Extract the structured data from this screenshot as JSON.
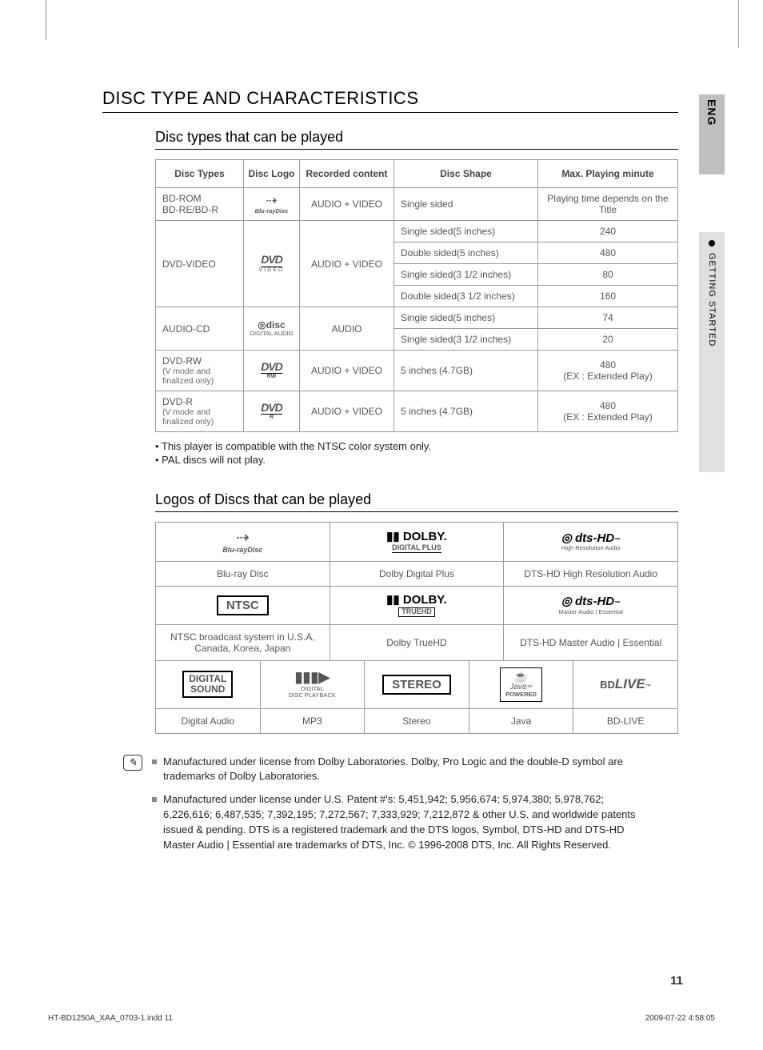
{
  "sideLang": "ENG",
  "sideTab": "GETTING STARTED",
  "sectionTitle": "DISC TYPE AND CHARACTERISTICS",
  "subtitle1": "Disc types that can be played",
  "discTable": {
    "headers": [
      "Disc Types",
      "Disc Logo",
      "Recorded content",
      "Disc Shape",
      "Max. Playing minute"
    ],
    "logos": {
      "bluray": "Blu-ray Disc",
      "dvdvideo": "DVD VIDEO",
      "cd": "COMPACT DISC DIGITAL AUDIO",
      "dvdrw": "DVD RW",
      "dvdr": "DVD R"
    },
    "rows": [
      {
        "type": "BD-ROM\nBD-RE/BD-R",
        "logo": "bluray",
        "content": "AUDIO + VIDEO",
        "shapes": [
          "Single sided"
        ],
        "minutes": [
          "Playing time depends on the Title"
        ]
      },
      {
        "type": "DVD-VIDEO",
        "logo": "dvdvideo",
        "content": "AUDIO + VIDEO",
        "shapes": [
          "Single sided(5 inches)",
          "Double sided(5 inches)",
          "Single sided(3 1/2 inches)",
          "Double sided(3 1/2 inches)"
        ],
        "minutes": [
          "240",
          "480",
          "80",
          "160"
        ]
      },
      {
        "type": "AUDIO-CD",
        "logo": "cd",
        "content": "AUDIO",
        "shapes": [
          "Single sided(5 inches)",
          "Single sided(3 1/2 inches)"
        ],
        "minutes": [
          "74",
          "20"
        ]
      },
      {
        "type": "DVD-RW",
        "typeNote": "(V mode and finalized only)",
        "logo": "dvdrw",
        "content": "AUDIO + VIDEO",
        "shapes": [
          "5 inches (4.7GB)"
        ],
        "minutes": [
          "480\n(EX : Extended Play)"
        ]
      },
      {
        "type": "DVD-R",
        "typeNote": "(V mode and finalized only)",
        "logo": "dvdr",
        "content": "AUDIO + VIDEO",
        "shapes": [
          "5 inches (4.7GB)"
        ],
        "minutes": [
          "480\n(EX : Extended Play)"
        ]
      }
    ]
  },
  "notes1": [
    "• This player is compatible with the NTSC color system only.",
    "• PAL discs will not play."
  ],
  "subtitle2": "Logos of Discs that can be played",
  "logoGrid": {
    "row1": [
      {
        "logo": "bluray-full",
        "label": "Blu-ray Disc"
      },
      {
        "logo": "dolby-plus",
        "label": "Dolby Digital Plus"
      },
      {
        "logo": "dts-hd-hra",
        "label": "DTS-HD High Resolution Audio"
      }
    ],
    "row2": [
      {
        "logo": "ntsc",
        "label": "NTSC broadcast system in U.S.A, Canada, Korea, Japan"
      },
      {
        "logo": "dolby-truehd",
        "label": "Dolby TrueHD"
      },
      {
        "logo": "dts-hd-ma",
        "label": "DTS-HD Master Audio | Essential"
      }
    ],
    "row3": [
      {
        "logo": "digital-sound",
        "label": "Digital Audio"
      },
      {
        "logo": "mp3",
        "label": "MP3"
      },
      {
        "logo": "stereo",
        "label": "Stereo"
      },
      {
        "logo": "java",
        "label": "Java"
      },
      {
        "logo": "bdlive",
        "label": "BD-LIVE"
      }
    ]
  },
  "footnotes": [
    "Manufactured under license from Dolby Laboratories. Dolby, Pro Logic and the double-D symbol are trademarks of Dolby Laboratories.",
    "Manufactured under license under U.S. Patent #'s: 5,451,942; 5,956,674; 5,974,380; 5,978,762; 6,226,616; 6,487,535; 7,392,195; 7,272,567; 7,333,929; 7,212,872 & other U.S. and worldwide patents issued & pending. DTS is a registered trademark and the DTS logos, Symbol, DTS-HD and DTS-HD Master Audio | Essential are trademarks of DTS, Inc. © 1996-2008 DTS, Inc. All Rights Reserved."
  ],
  "pageNumber": "11",
  "footerLeft": "HT-BD1250A_XAA_0703-1.indd   11",
  "footerRight": "2009-07-22     4:58:05",
  "strings": {
    "ntsc": "NTSC",
    "dolby": "DOLBY.",
    "digitalPlus": "DIGITAL PLUS",
    "trueHdLine": "TRUEHD",
    "dtsHd": "dts-HD",
    "hra": "High Resolution Audio",
    "maEss": "Master Audio | Essential",
    "digitalSound1": "DIGITAL",
    "digitalSound2": "SOUND",
    "stereo": "STEREO",
    "java": "Java",
    "javaPowered": "POWERED",
    "bdlive": "BD LIVE",
    "tm": "™"
  }
}
